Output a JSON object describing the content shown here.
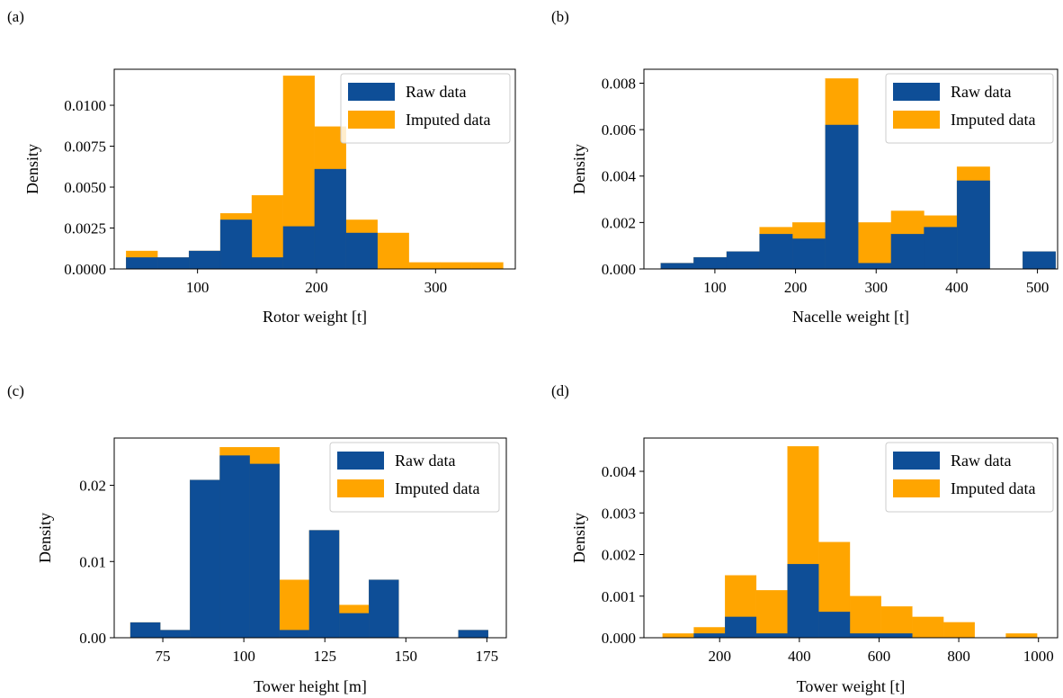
{
  "colors": {
    "raw": "#0e4e97",
    "imputed": "#ffa500"
  },
  "chart_data": [
    {
      "type": "bar",
      "panel_label": "(a)",
      "xlabel": "Rotor weight [t]",
      "ylabel": "Density",
      "xlim": [
        30,
        367
      ],
      "ylim": [
        0,
        0.0122
      ],
      "xticks": [
        100,
        200,
        300
      ],
      "xtick_labels": [
        "100",
        "200",
        "300"
      ],
      "yticks": [
        0,
        0.0025,
        0.005,
        0.0075,
        0.01
      ],
      "ytick_labels": [
        "0.0000",
        "0.0025",
        "0.0050",
        "0.0075",
        "0.0100"
      ],
      "legend": {
        "placement": "top-right",
        "entries": [
          "Raw data",
          "Imputed data"
        ]
      },
      "bin_edges": [
        40,
        66.4,
        92.8,
        119.2,
        145.6,
        172,
        198.4,
        224.8,
        251.2,
        277.6,
        304,
        330.4,
        356.8
      ],
      "series": [
        {
          "name": "Raw data",
          "values": [
            0.0007,
            0.0007,
            0.0011,
            0.003,
            0.0007,
            0.0026,
            0.0061,
            0.0022,
            0,
            0,
            0,
            0
          ]
        },
        {
          "name": "Imputed data",
          "values": [
            0.0011,
            0.0007,
            0.0011,
            0.0034,
            0.0045,
            0.0118,
            0.0087,
            0.003,
            0.0022,
            0.0004,
            0.0004,
            0.0004
          ]
        }
      ]
    },
    {
      "type": "bar",
      "panel_label": "(b)",
      "xlabel": "Nacelle weight [t]",
      "ylabel": "Density",
      "xlim": [
        12,
        525
      ],
      "ylim": [
        0,
        0.0086
      ],
      "xticks": [
        100,
        200,
        300,
        400,
        500
      ],
      "xtick_labels": [
        "100",
        "200",
        "300",
        "400",
        "500"
      ],
      "yticks": [
        0,
        0.002,
        0.004,
        0.006,
        0.008
      ],
      "ytick_labels": [
        "0.000",
        "0.002",
        "0.004",
        "0.006",
        "0.008"
      ],
      "legend": {
        "placement": "top-right",
        "entries": [
          "Raw data",
          "Imputed data"
        ]
      },
      "bin_edges": [
        33,
        73.8,
        114.6,
        155.4,
        196.2,
        237,
        277.8,
        318.6,
        359.4,
        400.2,
        441,
        481.8,
        522.6
      ],
      "series": [
        {
          "name": "Raw data",
          "values": [
            0.00025,
            0.0005,
            0.00075,
            0.0015,
            0.0013,
            0.0062,
            0.00025,
            0.0015,
            0.0018,
            0.0038,
            0,
            0.00075
          ]
        },
        {
          "name": "Imputed data",
          "values": [
            0.00025,
            0.0005,
            0.00075,
            0.0018,
            0.002,
            0.0082,
            0.002,
            0.0025,
            0.0023,
            0.0044,
            0,
            0.00075
          ]
        }
      ]
    },
    {
      "type": "bar",
      "panel_label": "(c)",
      "xlabel": "Tower height [m]",
      "ylabel": "Density",
      "xlim": [
        60,
        181
      ],
      "ylim": [
        0,
        0.0262
      ],
      "xticks": [
        75,
        100,
        125,
        150,
        175
      ],
      "xtick_labels": [
        "75",
        "100",
        "125",
        "150",
        "175"
      ],
      "yticks": [
        0,
        0.01,
        0.02
      ],
      "ytick_labels": [
        "0.00",
        "0.01",
        "0.02"
      ],
      "legend": {
        "placement": "top-right",
        "entries": [
          "Raw data",
          "Imputed data"
        ]
      },
      "bin_edges": [
        65,
        74.2,
        83.4,
        92.6,
        101.8,
        111,
        120.2,
        129.4,
        138.6,
        147.8,
        157,
        166.2,
        175.4
      ],
      "series": [
        {
          "name": "Raw data",
          "values": [
            0.002,
            0.001,
            0.0207,
            0.0239,
            0.0228,
            0.001,
            0.0141,
            0.0032,
            0.0076,
            0,
            0,
            0.001
          ]
        },
        {
          "name": "Imputed data",
          "values": [
            0.002,
            0.001,
            0.0207,
            0.025,
            0.025,
            0.0076,
            0.0141,
            0.0043,
            0.0076,
            0,
            0,
            0.001
          ]
        }
      ]
    },
    {
      "type": "bar",
      "panel_label": "(d)",
      "xlabel": "Tower weight [t]",
      "ylabel": "Density",
      "xlim": [
        10,
        1048
      ],
      "ylim": [
        0,
        0.0048
      ],
      "xticks": [
        200,
        400,
        600,
        800,
        1000
      ],
      "xtick_labels": [
        "200",
        "400",
        "600",
        "800",
        "1000"
      ],
      "yticks": [
        0,
        0.001,
        0.002,
        0.003,
        0.004
      ],
      "ytick_labels": [
        "0.000",
        "0.001",
        "0.002",
        "0.003",
        "0.004"
      ],
      "legend": {
        "placement": "top-right",
        "entries": [
          "Raw data",
          "Imputed data"
        ]
      },
      "bin_edges": [
        57,
        135.3,
        213.6,
        291.9,
        370.2,
        448.5,
        526.8,
        605.1,
        683.4,
        761.7,
        840,
        918.3,
        996.6
      ],
      "series": [
        {
          "name": "Raw data",
          "values": [
            0,
            0.0001,
            0.0005,
            0.0001,
            0.00177,
            0.00062,
            0.0001,
            0.0001,
            0,
            0,
            0,
            0
          ]
        },
        {
          "name": "Imputed data",
          "values": [
            0.0001,
            0.00025,
            0.0015,
            0.00114,
            0.0046,
            0.0023,
            0.001,
            0.00075,
            0.0005,
            0.00037,
            0,
            0.0001
          ]
        }
      ]
    }
  ]
}
